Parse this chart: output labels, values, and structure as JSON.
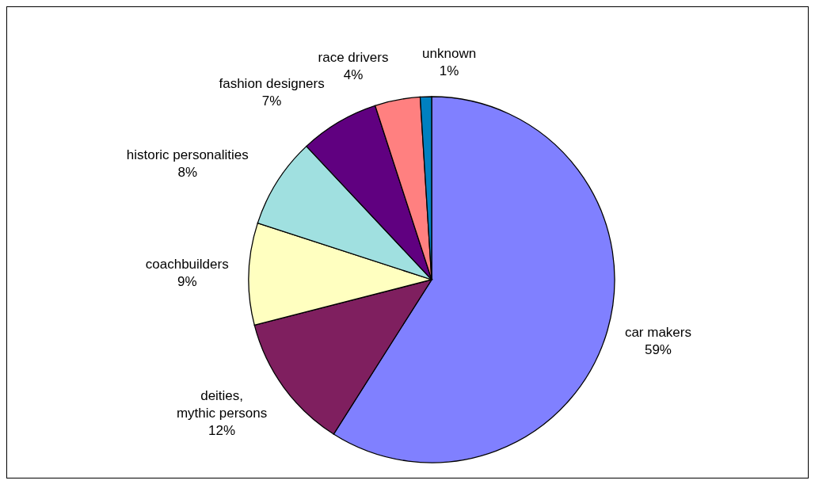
{
  "chart_data": {
    "type": "pie",
    "categories": [
      "car makers",
      "deities, mythic persons",
      "coachbuilders",
      "historic personalities",
      "fashion designers",
      "race drivers",
      "unknown"
    ],
    "values": [
      59,
      12,
      9,
      8,
      7,
      4,
      1
    ],
    "value_labels": [
      "59%",
      "12%",
      "9%",
      "8%",
      "7%",
      "4%",
      "1%"
    ],
    "colors": [
      "#8080ff",
      "#7f1f5f",
      "#ffffc0",
      "#a0e0e0",
      "#600080",
      "#ff8080",
      "#0080c0"
    ],
    "legend": false
  }
}
